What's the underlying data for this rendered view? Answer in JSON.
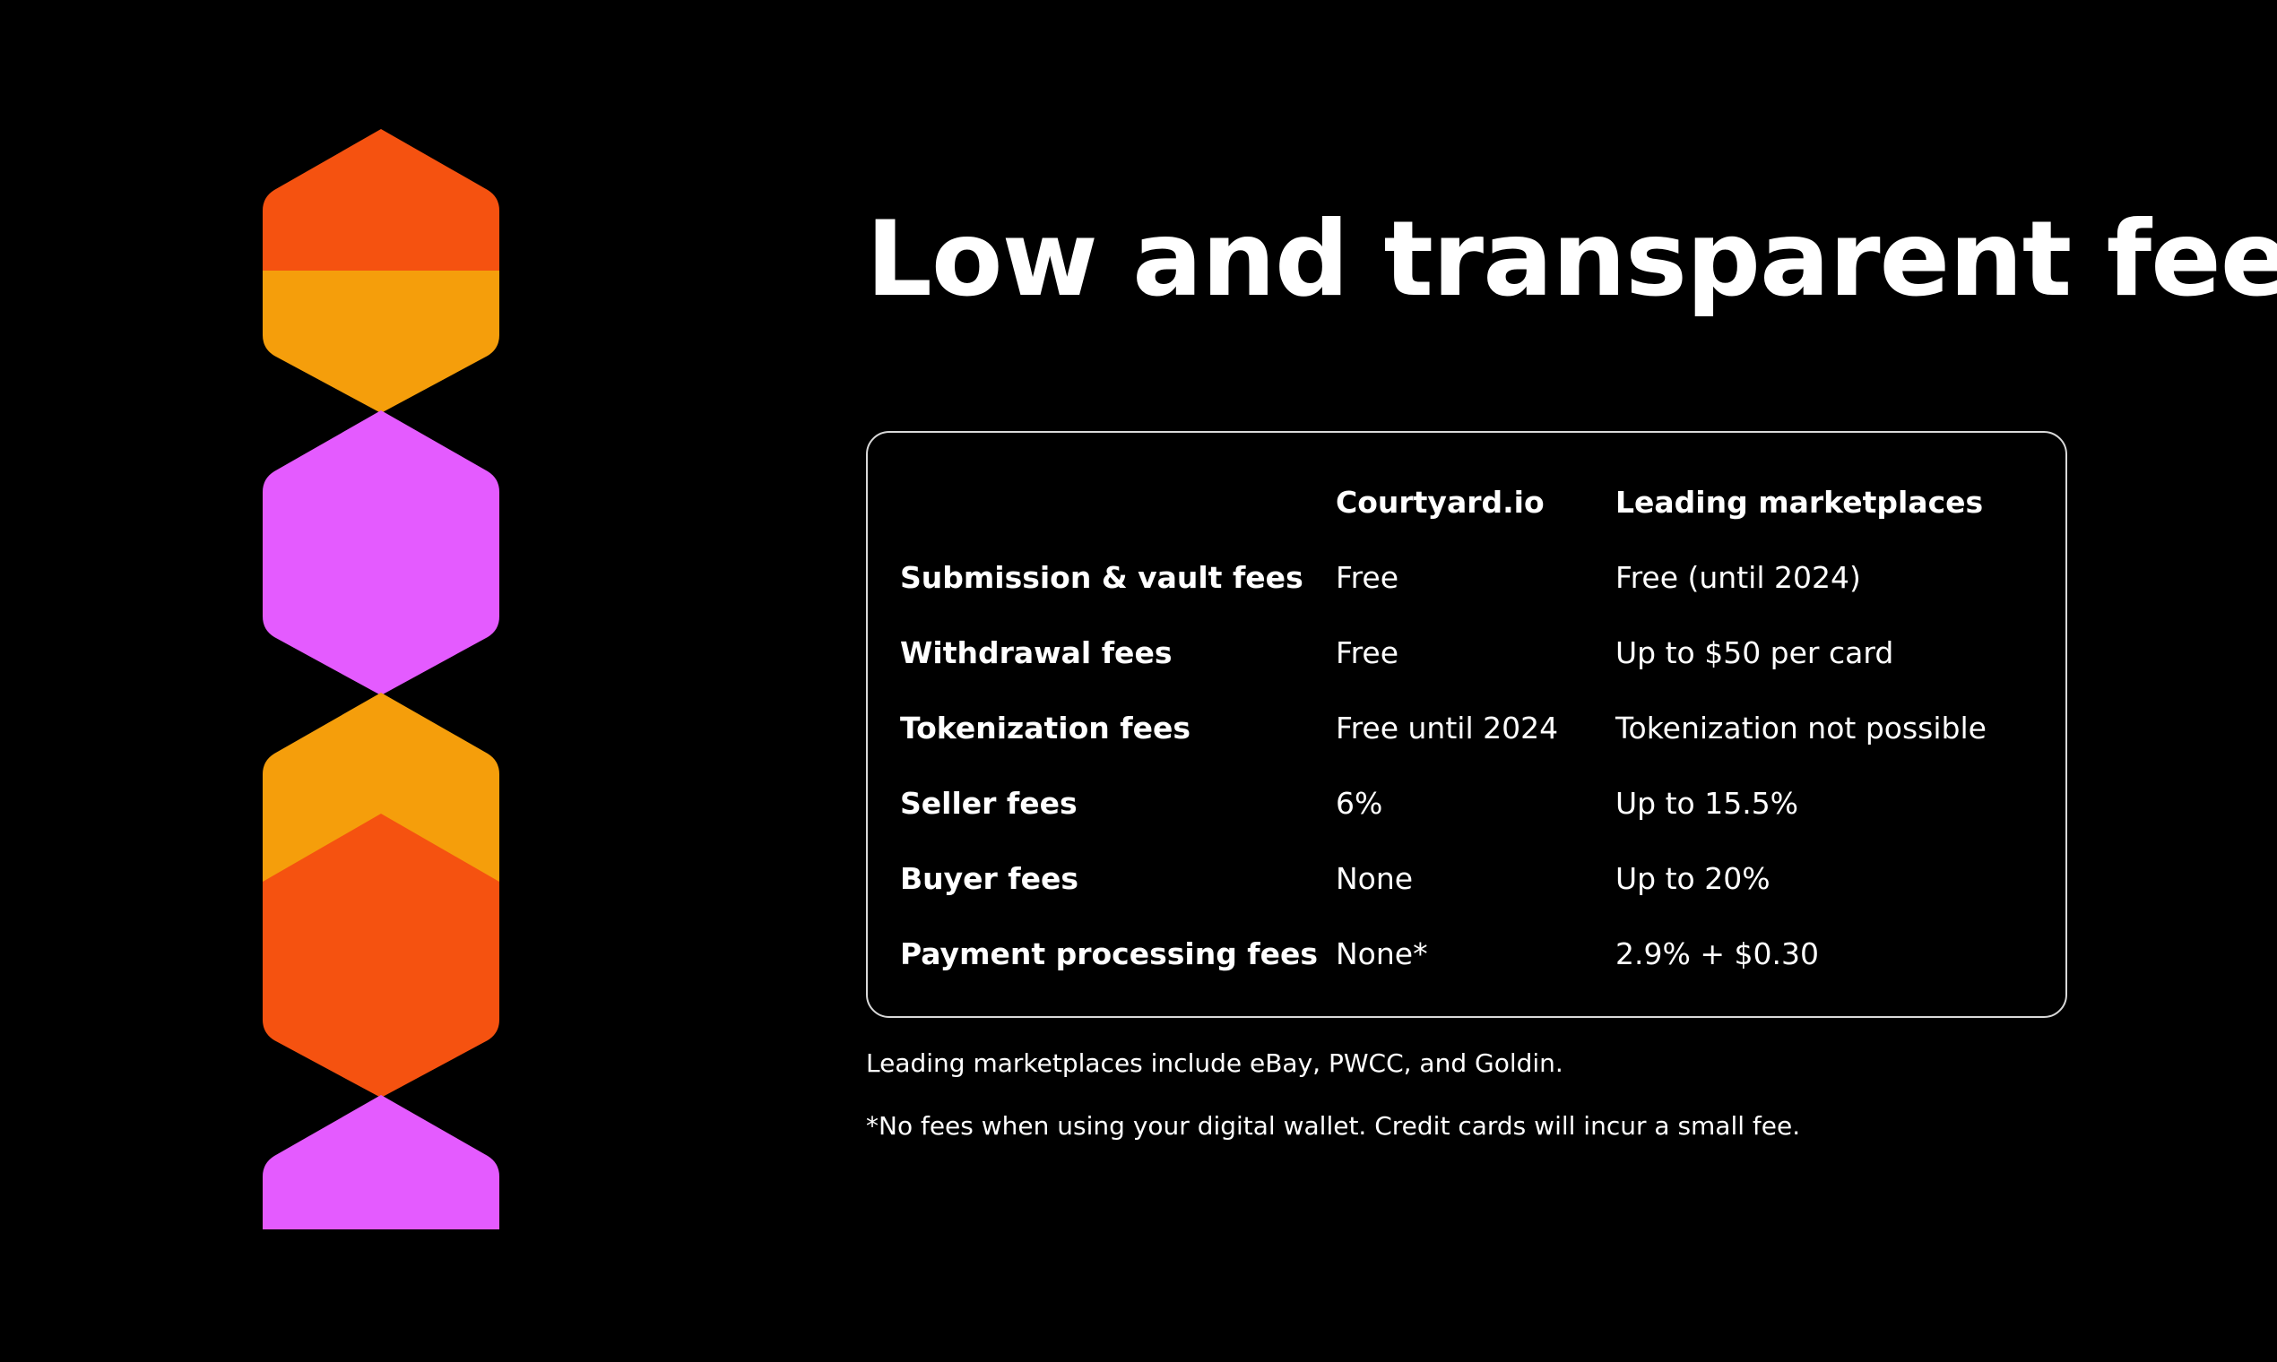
{
  "slide": {
    "title": "Low and transparent fees"
  },
  "decoration": {
    "colors": {
      "orange_red": "#F55210",
      "amber": "#F59E0B",
      "magenta": "#E45BFF"
    }
  },
  "fee_table": {
    "columns": [
      "",
      "Courtyard.io",
      "Leading marketplaces"
    ],
    "rows": [
      {
        "label": "Submission & vault fees",
        "courtyard": "Free",
        "marketplaces": "Free (until 2024)"
      },
      {
        "label": "Withdrawal fees",
        "courtyard": "Free",
        "marketplaces": "Up to $50 per card"
      },
      {
        "label": "Tokenization fees",
        "courtyard": "Free until 2024",
        "marketplaces": "Tokenization not possible"
      },
      {
        "label": "Seller fees",
        "courtyard": "6%",
        "marketplaces": "Up to 15.5%"
      },
      {
        "label": "Buyer fees",
        "courtyard": "None",
        "marketplaces": "Up to 20%"
      },
      {
        "label": "Payment processing fees",
        "courtyard": "None*",
        "marketplaces": "2.9% + $0.30"
      }
    ]
  },
  "footnotes": {
    "marketplaces_note": "Leading marketplaces include eBay, PWCC, and Goldin.",
    "wallet_note": "*No fees when using your digital wallet. Credit cards will incur a small fee."
  }
}
